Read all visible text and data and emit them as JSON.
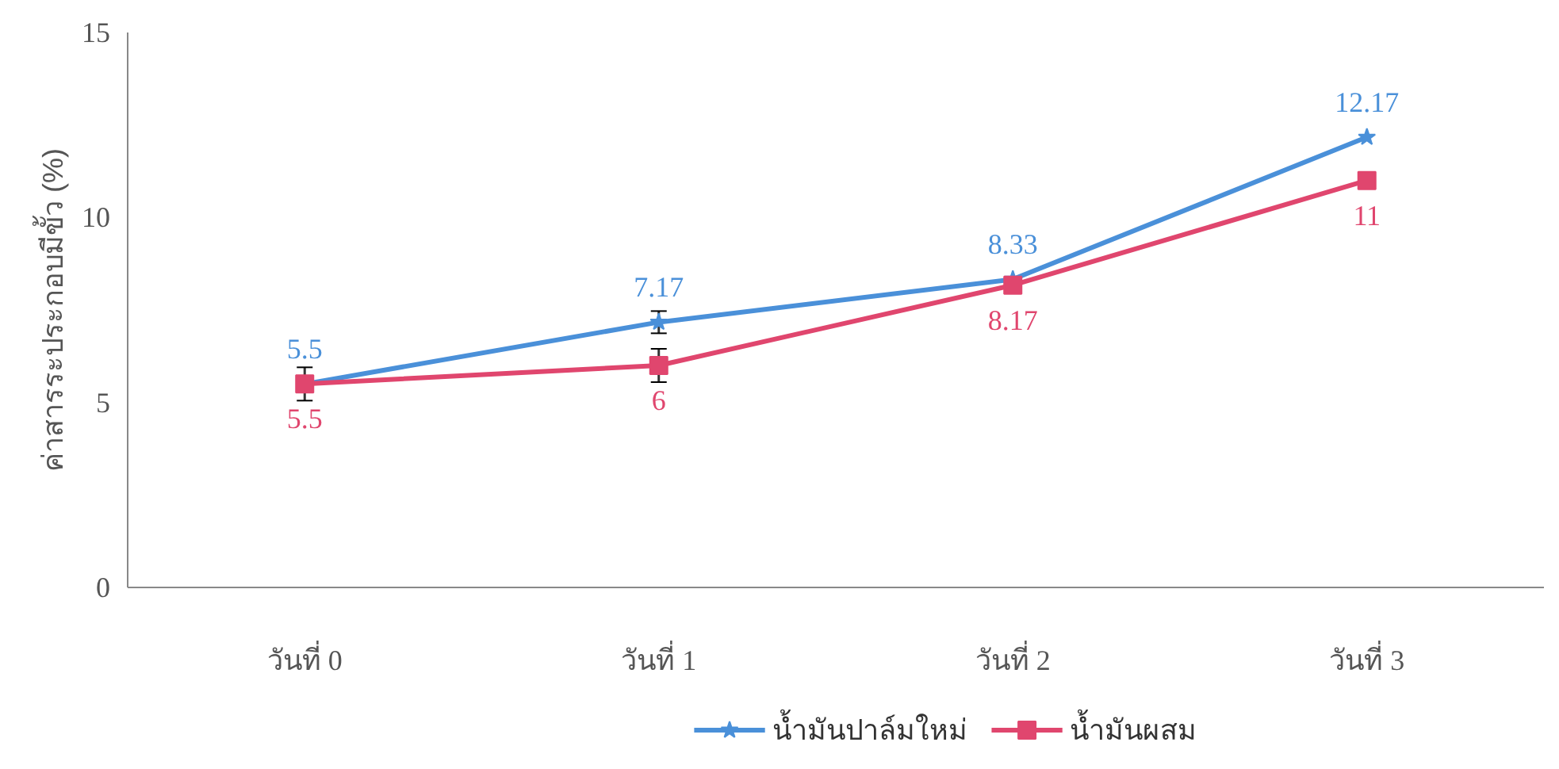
{
  "chart_data": {
    "type": "line",
    "ylabel": "ค่าสารระประกอบมีขั้ว (%)",
    "categories": [
      "วันที่ 0",
      "วันที่ 1",
      "วันที่ 2",
      "วันที่ 3"
    ],
    "series": [
      {
        "name": "น้ำมันปาล์มใหม่",
        "color": "#4a90d9",
        "values": [
          5.5,
          7.17,
          8.33,
          12.17
        ],
        "marker": "star",
        "errors": [
          null,
          0.3,
          null,
          null
        ]
      },
      {
        "name": "น้ำมันผสม",
        "color": "#e0466e",
        "values": [
          5.5,
          6,
          8.17,
          11
        ],
        "marker": "square",
        "errors": [
          0.45,
          0.45,
          null,
          null
        ]
      }
    ],
    "ylim": [
      0,
      15
    ],
    "yticks": [
      0,
      5,
      10,
      15
    ],
    "grid": false,
    "legend": "bottom",
    "data_labels": true,
    "line_style": "solid"
  }
}
